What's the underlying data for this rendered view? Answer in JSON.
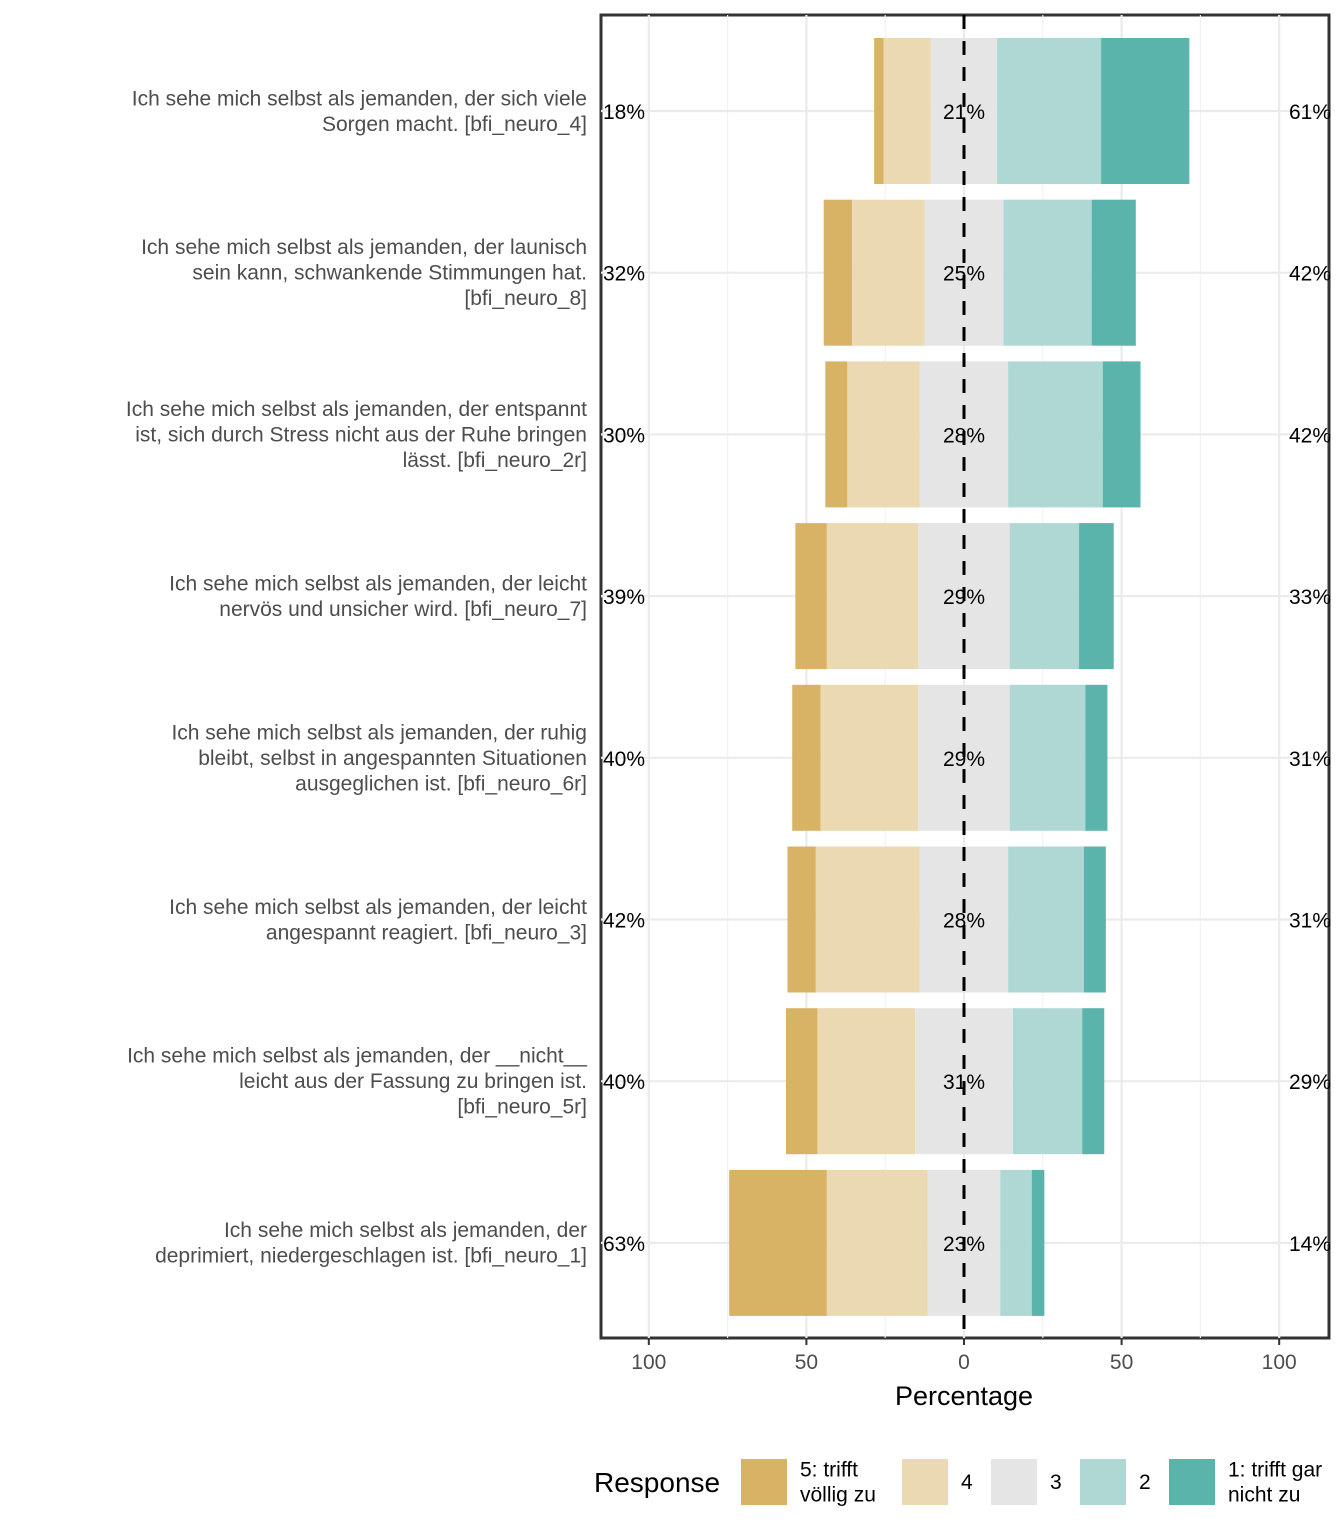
{
  "chart_data": {
    "type": "bar",
    "orientation": "horizontal-diverging-stacked",
    "title": "",
    "xlabel": "Percentage",
    "ylabel": "",
    "xlim": [
      -100,
      100
    ],
    "x_ticks": [
      -100,
      -50,
      0,
      50,
      100
    ],
    "x_tick_labels": [
      "100",
      "50",
      "0",
      "50",
      "100"
    ],
    "grid": true,
    "legend": {
      "title": "Response",
      "placement": "bottom",
      "entries": [
        {
          "label_lines": [
            "5: trifft",
            "völlig zu"
          ],
          "color": "#D8B365"
        },
        {
          "label_lines": [
            "4"
          ],
          "color": "#EBD9B2"
        },
        {
          "label_lines": [
            "3"
          ],
          "color": "#E5E5E5"
        },
        {
          "label_lines": [
            "2"
          ],
          "color": "#AFD8D4"
        },
        {
          "label_lines": [
            "1: trifft gar",
            "nicht zu"
          ],
          "color": "#5AB4AC"
        }
      ]
    },
    "series_names": [
      "5: trifft völlig zu",
      "4",
      "3",
      "2",
      "1: trifft gar nicht zu"
    ],
    "categories": [
      {
        "label_lines": [
          "Ich sehe mich selbst als jemanden, der sich viele",
          "Sorgen macht. [bfi_neuro_4]"
        ],
        "values": [
          3,
          15,
          21,
          33,
          28
        ],
        "left_pct": "18%",
        "center_pct": "21%",
        "right_pct": "61%"
      },
      {
        "label_lines": [
          "Ich sehe mich selbst als jemanden, der launisch",
          "sein kann, schwankende Stimmungen hat.",
          "[bfi_neuro_8]"
        ],
        "values": [
          9,
          23,
          25,
          28,
          14
        ],
        "left_pct": "32%",
        "center_pct": "25%",
        "right_pct": "42%"
      },
      {
        "label_lines": [
          "Ich sehe mich selbst als jemanden, der entspannt",
          "ist, sich durch Stress nicht aus der Ruhe bringen",
          "lässt. [bfi_neuro_2r]"
        ],
        "values": [
          7,
          23,
          28,
          30,
          12
        ],
        "left_pct": "30%",
        "center_pct": "28%",
        "right_pct": "42%"
      },
      {
        "label_lines": [
          "Ich sehe mich selbst als jemanden, der leicht",
          "nervös und unsicher wird. [bfi_neuro_7]"
        ],
        "values": [
          10,
          29,
          29,
          22,
          11
        ],
        "left_pct": "39%",
        "center_pct": "29%",
        "right_pct": "33%"
      },
      {
        "label_lines": [
          "Ich sehe mich selbst als jemanden, der ruhig",
          "bleibt, selbst in angespannten Situationen",
          "ausgeglichen ist. [bfi_neuro_6r]"
        ],
        "values": [
          9,
          31,
          29,
          24,
          7
        ],
        "left_pct": "40%",
        "center_pct": "29%",
        "right_pct": "31%"
      },
      {
        "label_lines": [
          "Ich sehe mich selbst als jemanden, der leicht",
          "angespannt reagiert. [bfi_neuro_3]"
        ],
        "values": [
          9,
          33,
          28,
          24,
          7
        ],
        "left_pct": "42%",
        "center_pct": "28%",
        "right_pct": "31%"
      },
      {
        "label_lines": [
          "Ich sehe mich selbst als jemanden, der __nicht__",
          "leicht aus der Fassung zu bringen ist.",
          "[bfi_neuro_5r]"
        ],
        "values": [
          10,
          31,
          31,
          22,
          7
        ],
        "left_pct": "40%",
        "center_pct": "31%",
        "right_pct": "29%"
      },
      {
        "label_lines": [
          "Ich sehe mich selbst als jemanden, der",
          "deprimiert, niedergeschlagen ist. [bfi_neuro_1]"
        ],
        "values": [
          31,
          32,
          23,
          10,
          4
        ],
        "left_pct": "63%",
        "center_pct": "23%",
        "right_pct": "14%"
      }
    ]
  }
}
